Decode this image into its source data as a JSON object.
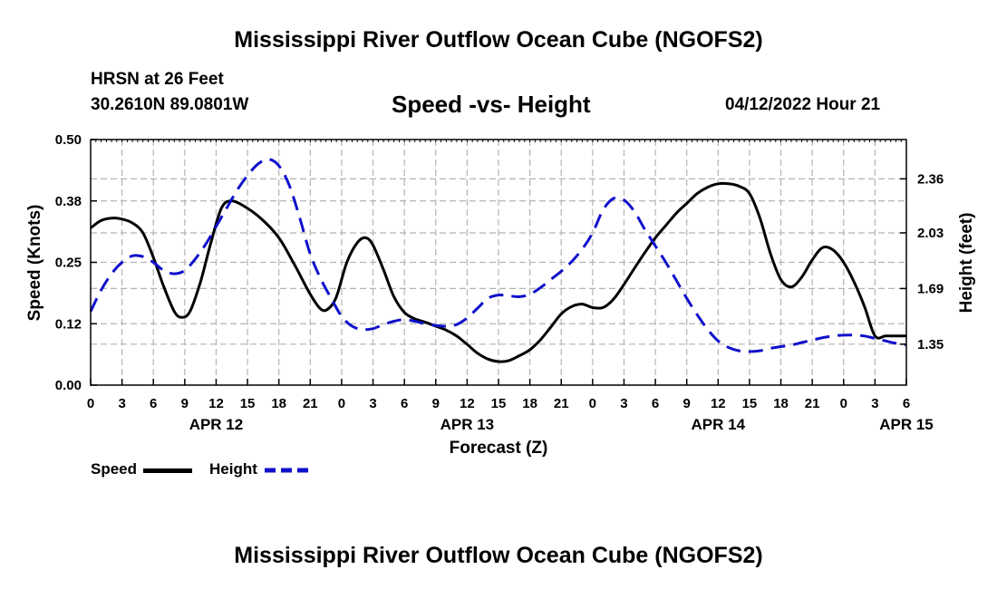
{
  "header": {
    "title": "Mississippi River Outflow Ocean Cube (NGOFS2)",
    "station": "HRSN at 26 Feet",
    "coords": "30.2610N  89.0801W",
    "subtitle": "Speed -vs- Height",
    "datetime": "04/12/2022 Hour 21"
  },
  "footer": {
    "title": "Mississippi River Outflow Ocean Cube (NGOFS2)"
  },
  "colors": {
    "speed": "#000000",
    "height": "#1010cc",
    "grid": "#b4b4b4"
  },
  "chart_data": {
    "type": "line",
    "xlabel": "Forecast (Z)",
    "ylabel": "Speed (Knots)",
    "y2label": "Height (feet)",
    "xlim": [
      0,
      78
    ],
    "ylim": [
      0,
      0.5
    ],
    "y2lim": [
      1.1,
      2.6
    ],
    "x_ticks": [
      0,
      3,
      6,
      9,
      12,
      15,
      18,
      21,
      24,
      27,
      30,
      33,
      36,
      39,
      42,
      45,
      48,
      51,
      54,
      57,
      60,
      63,
      66,
      69,
      72,
      75,
      78
    ],
    "x_tick_labels": [
      "0",
      "3",
      "6",
      "9",
      "12",
      "15",
      "18",
      "21",
      "0",
      "3",
      "6",
      "9",
      "12",
      "15",
      "18",
      "21",
      "0",
      "3",
      "6",
      "9",
      "12",
      "15",
      "18",
      "21",
      "0",
      "3",
      "6"
    ],
    "y_ticks": [
      0,
      0.125,
      0.25,
      0.375,
      0.5
    ],
    "y_tick_labels": [
      "0.00",
      "0.12",
      "0.25",
      "0.38",
      "0.50"
    ],
    "y2_ticks": [
      1.35,
      1.69,
      2.03,
      2.36
    ],
    "y2_tick_labels": [
      "1.35",
      "1.69",
      "2.03",
      "2.36"
    ],
    "date_labels": [
      {
        "x": 12,
        "label": "APR 12"
      },
      {
        "x": 36,
        "label": "APR 13"
      },
      {
        "x": 60,
        "label": "APR 14"
      },
      {
        "x": 78,
        "label": "APR 15"
      }
    ],
    "series": [
      {
        "name": "Speed",
        "axis": "left",
        "x": [
          0,
          1,
          2,
          3,
          4,
          5,
          6,
          7,
          8,
          8.7,
          9.5,
          10.5,
          11.5,
          12.5,
          13.5,
          15,
          16.5,
          18,
          19.5,
          21,
          22,
          22.7,
          23.5,
          24.5,
          25.5,
          26.3,
          27,
          28,
          29,
          30,
          31,
          32,
          33,
          34,
          35,
          36,
          37,
          38,
          39,
          40,
          41,
          42,
          43,
          44,
          45,
          46,
          47,
          48,
          49,
          50,
          51,
          52,
          53,
          54,
          55,
          56,
          57,
          58,
          59,
          60,
          61,
          62,
          63,
          64,
          65,
          66,
          67,
          68,
          69,
          70,
          71,
          72,
          73,
          74,
          75,
          76,
          77,
          78
        ],
        "values": [
          0.32,
          0.335,
          0.34,
          0.338,
          0.33,
          0.31,
          0.26,
          0.2,
          0.15,
          0.138,
          0.15,
          0.21,
          0.29,
          0.36,
          0.375,
          0.36,
          0.335,
          0.3,
          0.245,
          0.185,
          0.155,
          0.155,
          0.18,
          0.25,
          0.29,
          0.3,
          0.285,
          0.235,
          0.18,
          0.148,
          0.135,
          0.128,
          0.12,
          0.112,
          0.1,
          0.083,
          0.065,
          0.053,
          0.048,
          0.05,
          0.06,
          0.072,
          0.092,
          0.118,
          0.145,
          0.16,
          0.165,
          0.158,
          0.158,
          0.175,
          0.205,
          0.238,
          0.27,
          0.3,
          0.325,
          0.35,
          0.37,
          0.39,
          0.403,
          0.41,
          0.41,
          0.405,
          0.39,
          0.34,
          0.268,
          0.215,
          0.2,
          0.22,
          0.255,
          0.28,
          0.275,
          0.25,
          0.21,
          0.16,
          0.1,
          0.1,
          0.1,
          0.1
        ]
      },
      {
        "name": "Height",
        "axis": "right",
        "x": [
          0,
          1,
          2,
          3,
          4,
          5,
          6,
          7,
          8,
          9,
          10,
          11,
          12,
          13,
          14,
          15,
          16,
          17,
          18,
          19,
          20,
          21,
          22,
          23,
          24,
          25,
          26,
          27,
          28,
          29,
          30,
          31,
          32,
          33,
          34,
          35,
          36,
          37,
          38,
          39,
          40,
          41,
          42,
          43,
          44,
          45,
          46,
          47,
          48,
          49,
          50,
          51,
          52,
          53,
          54,
          55,
          56,
          57,
          58,
          59,
          60,
          61,
          62,
          63,
          64,
          65,
          66,
          67,
          68,
          69,
          70,
          71,
          72,
          73,
          74,
          75,
          76,
          77,
          78
        ],
        "values": [
          1.55,
          1.68,
          1.78,
          1.85,
          1.89,
          1.885,
          1.85,
          1.8,
          1.78,
          1.8,
          1.87,
          1.96,
          2.07,
          2.18,
          2.29,
          2.38,
          2.45,
          2.48,
          2.44,
          2.32,
          2.12,
          1.9,
          1.75,
          1.63,
          1.52,
          1.46,
          1.44,
          1.445,
          1.47,
          1.49,
          1.5,
          1.49,
          1.475,
          1.465,
          1.46,
          1.47,
          1.51,
          1.57,
          1.63,
          1.65,
          1.645,
          1.64,
          1.655,
          1.695,
          1.745,
          1.795,
          1.855,
          1.93,
          2.03,
          2.17,
          2.24,
          2.23,
          2.16,
          2.05,
          1.95,
          1.85,
          1.74,
          1.63,
          1.53,
          1.44,
          1.37,
          1.33,
          1.31,
          1.305,
          1.31,
          1.325,
          1.335,
          1.345,
          1.36,
          1.375,
          1.39,
          1.4,
          1.405,
          1.405,
          1.4,
          1.385,
          1.37,
          1.355,
          1.345
        ]
      }
    ],
    "legend": [
      {
        "label": "Speed"
      },
      {
        "label": "Height"
      }
    ]
  }
}
